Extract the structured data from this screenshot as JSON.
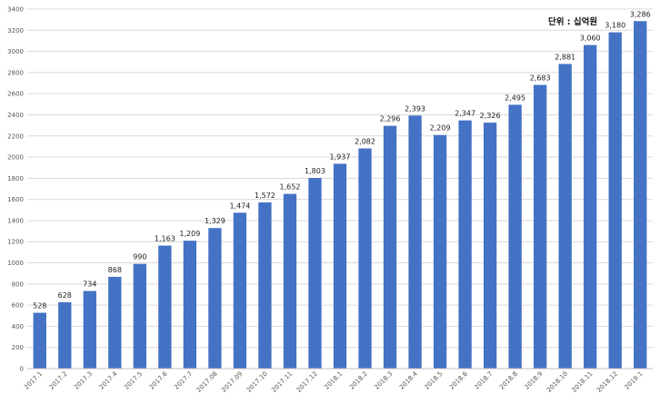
{
  "chart_data": {
    "type": "bar",
    "title": "",
    "xlabel": "",
    "ylabel": "",
    "unit_label": "단위 : 십억원",
    "ylim": [
      0,
      3400
    ],
    "yticks": [
      0,
      200,
      400,
      600,
      800,
      1000,
      1200,
      1400,
      1600,
      1800,
      2000,
      2200,
      2400,
      2600,
      2800,
      3000,
      3200,
      3400
    ],
    "grid": true,
    "legend": "none",
    "bar_color": "#4472C4",
    "categories": [
      "2017.1",
      "2017.2",
      "2017.3",
      "2017.4",
      "2017.5",
      "2017.6",
      "2017.7",
      "2017.08",
      "2017.09",
      "2017.10",
      "2017.11",
      "2017.12",
      "2018.1",
      "2018.2",
      "2018.3",
      "2018.4",
      "2018.5",
      "2018.6",
      "2018.7",
      "2018.8",
      "2018.9",
      "2018.10",
      "2018.11",
      "2018.12",
      "2019.1"
    ],
    "values": [
      528,
      628,
      734,
      868,
      990,
      1163,
      1209,
      1329,
      1474,
      1572,
      1652,
      1803,
      1937,
      2082,
      2296,
      2393,
      2209,
      2347,
      2326,
      2495,
      2683,
      2881,
      3060,
      3180,
      3286
    ],
    "value_labels": [
      "528",
      "628",
      "734",
      "868",
      "990",
      "1,163",
      "1,209",
      "1,329",
      "1,474",
      "1,572",
      "1,652",
      "1,803",
      "1,937",
      "2,082",
      "2,296",
      "2,393",
      "2,209",
      "2,347",
      "2,326",
      "2,495",
      "2,683",
      "2,881",
      "3,060",
      "3,180",
      "3,286"
    ]
  }
}
